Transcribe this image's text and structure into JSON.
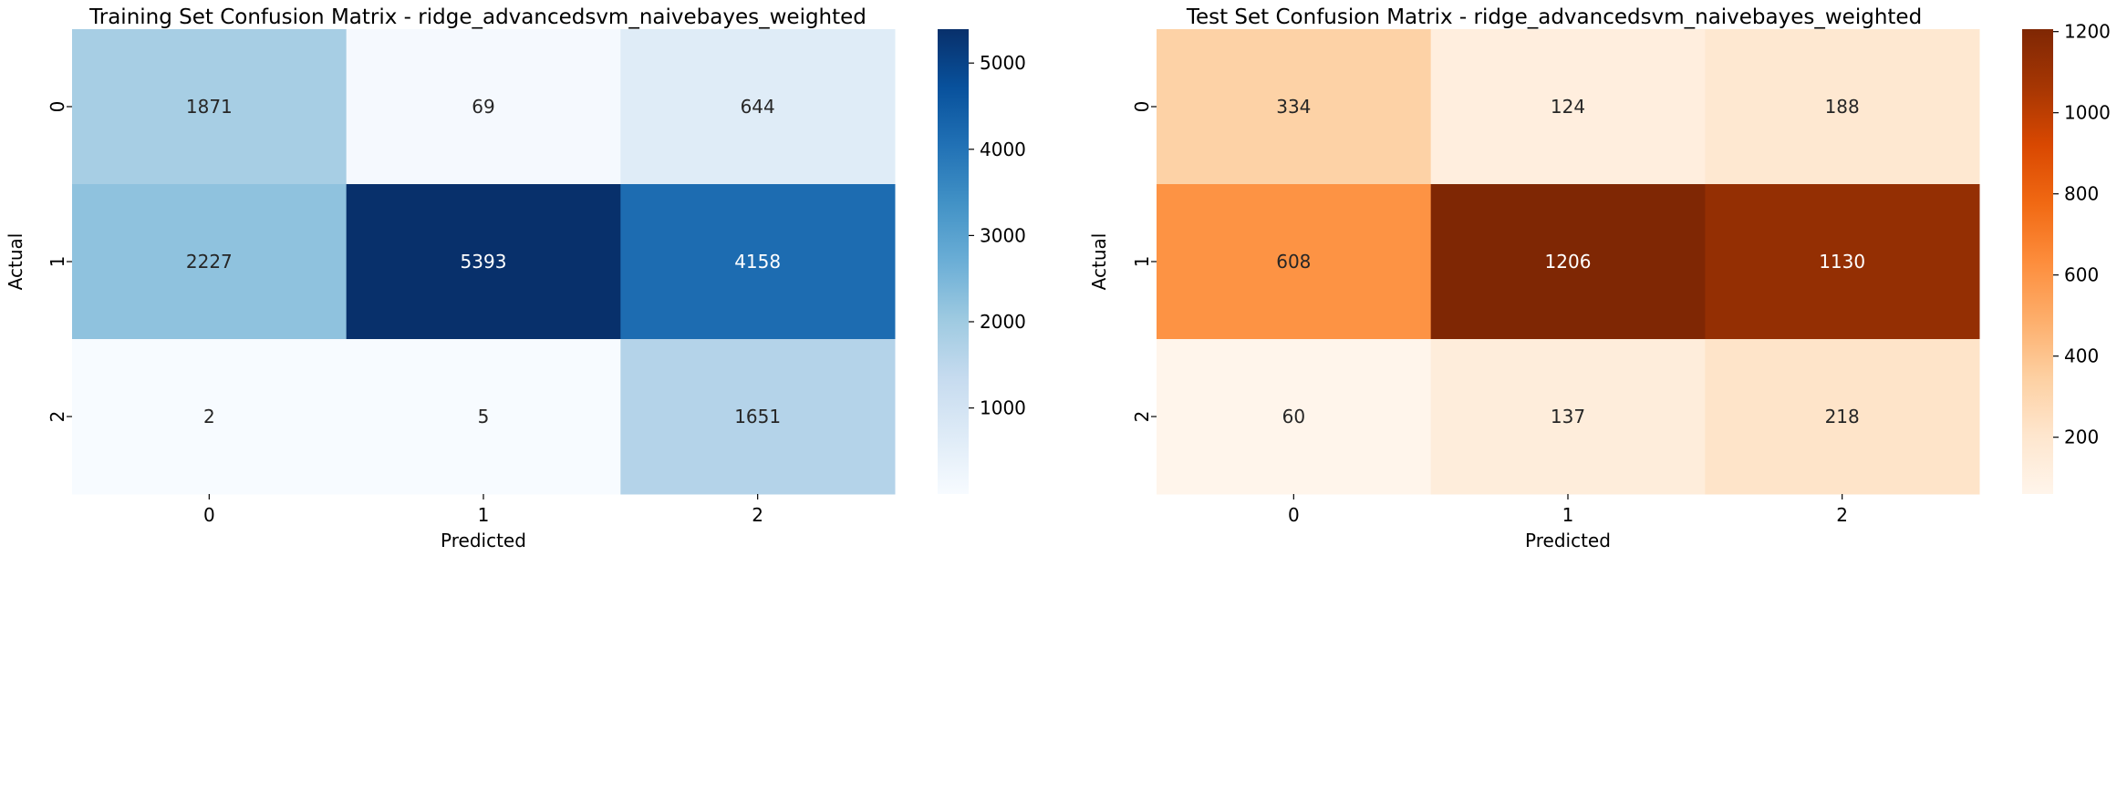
{
  "chart_data": [
    {
      "type": "heatmap",
      "title": "Training Set Confusion Matrix - ridge_advancedsvm_naivebayes_weighted",
      "xlabel": "Predicted",
      "ylabel": "Actual",
      "x_categories": [
        "0",
        "1",
        "2"
      ],
      "y_categories": [
        "0",
        "1",
        "2"
      ],
      "values": [
        [
          1871,
          69,
          644
        ],
        [
          2227,
          5393,
          4158
        ],
        [
          2,
          5,
          1651
        ]
      ],
      "colormap": "Blues",
      "colorbar": {
        "range": [
          2,
          5393
        ],
        "ticks": [
          1000,
          2000,
          3000,
          4000,
          5000
        ]
      }
    },
    {
      "type": "heatmap",
      "title": "Test Set Confusion Matrix - ridge_advancedsvm_naivebayes_weighted",
      "xlabel": "Predicted",
      "ylabel": "Actual",
      "x_categories": [
        "0",
        "1",
        "2"
      ],
      "y_categories": [
        "0",
        "1",
        "2"
      ],
      "values": [
        [
          334,
          124,
          188
        ],
        [
          608,
          1206,
          1130
        ],
        [
          60,
          137,
          218
        ]
      ],
      "colormap": "Oranges",
      "colorbar": {
        "range": [
          60,
          1206
        ],
        "ticks": [
          200,
          400,
          600,
          800,
          1000,
          1200
        ]
      }
    }
  ],
  "colormaps": {
    "Blues": [
      "#f7fbff",
      "#deebf7",
      "#c6dbef",
      "#9ecae1",
      "#6baed6",
      "#4292c6",
      "#2171b5",
      "#08519c",
      "#08306b"
    ],
    "Oranges": [
      "#fff5eb",
      "#fee6ce",
      "#fdd0a2",
      "#fdae6b",
      "#fd8d3c",
      "#f16913",
      "#d94801",
      "#a63603",
      "#7f2704"
    ]
  }
}
